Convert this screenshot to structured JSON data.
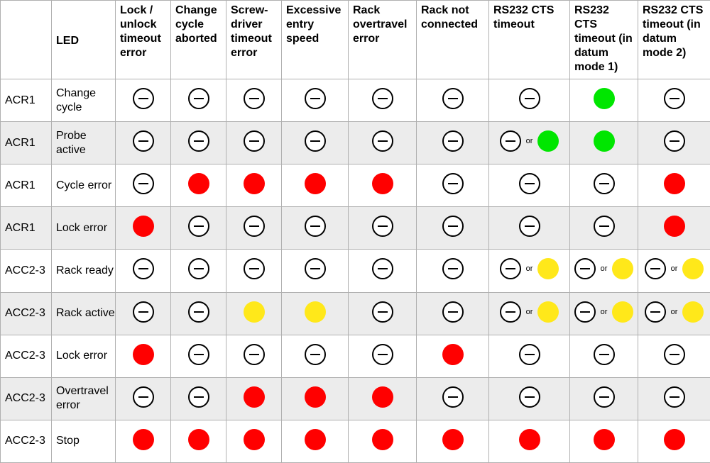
{
  "colors": {
    "off": "#ffffff",
    "red": "#ff0000",
    "green": "#00e600",
    "yellow": "#ffe81a"
  },
  "icons": {
    "off": "led-off-icon",
    "red": "led-red-icon",
    "green": "led-green-icon",
    "yellow": "led-yellow-icon"
  },
  "or_word": "or",
  "headers": {
    "device": "",
    "led": "LED",
    "states": [
      "Lock / unlock timeout error",
      "Change cycle aborted",
      "Screw-driver timeout error",
      "Excessive entry speed",
      "Rack overtravel error",
      "Rack not connected",
      "RS232 CTS timeout",
      "RS232 CTS timeout (in datum mode 1)",
      "RS232 CTS timeout (in datum mode 2)"
    ]
  },
  "rows": [
    {
      "device": "ACR1",
      "led": "Change cycle",
      "states": [
        "off",
        "off",
        "off",
        "off",
        "off",
        "off",
        "off",
        "green",
        "off"
      ]
    },
    {
      "device": "ACR1",
      "led": "Probe active",
      "states": [
        "off",
        "off",
        "off",
        "off",
        "off",
        "off",
        "off|green",
        "green",
        "off"
      ]
    },
    {
      "device": "ACR1",
      "led": "Cycle error",
      "states": [
        "off",
        "red",
        "red",
        "red",
        "red",
        "off",
        "off",
        "off",
        "red"
      ]
    },
    {
      "device": "ACR1",
      "led": "Lock error",
      "states": [
        "red",
        "off",
        "off",
        "off",
        "off",
        "off",
        "off",
        "off",
        "red"
      ]
    },
    {
      "device": "ACC2-3",
      "led": "Rack ready",
      "states": [
        "off",
        "off",
        "off",
        "off",
        "off",
        "off",
        "off|yellow",
        "off|yellow",
        "off|yellow"
      ]
    },
    {
      "device": "ACC2-3",
      "led": "Rack active",
      "states": [
        "off",
        "off",
        "yellow",
        "yellow",
        "off",
        "off",
        "off|yellow",
        "off|yellow",
        "off|yellow"
      ]
    },
    {
      "device": "ACC2-3",
      "led": "Lock error",
      "states": [
        "red",
        "off",
        "off",
        "off",
        "off",
        "red",
        "off",
        "off",
        "off"
      ]
    },
    {
      "device": "ACC2-3",
      "led": "Overtravel error",
      "states": [
        "off",
        "off",
        "red",
        "red",
        "red",
        "off",
        "off",
        "off",
        "off"
      ]
    },
    {
      "device": "ACC2-3",
      "led": "Stop",
      "states": [
        "red",
        "red",
        "red",
        "red",
        "red",
        "red",
        "red",
        "red",
        "red"
      ]
    }
  ]
}
